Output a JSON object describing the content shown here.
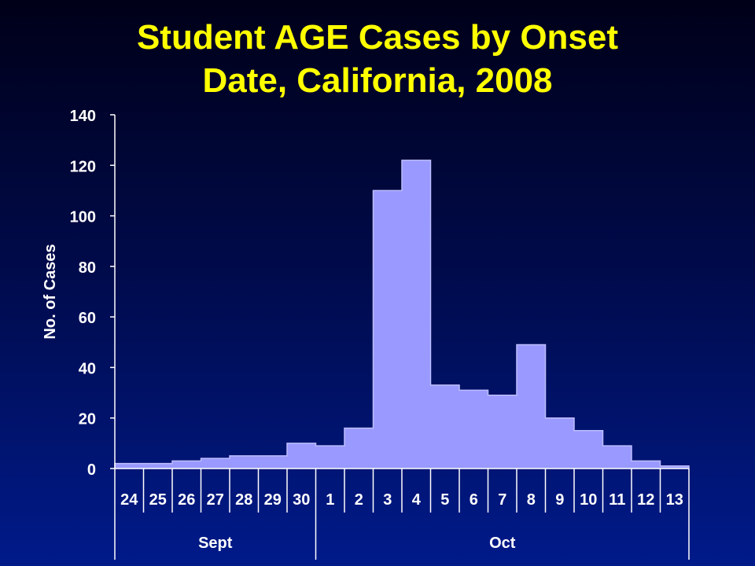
{
  "slide": {
    "title_line1": "Student AGE Cases by Onset",
    "title_line2": "Date, California, 2008"
  },
  "colors": {
    "title": "#ffff00",
    "bar_fill": "#9999ff",
    "axis": "#ffffff",
    "text": "#ffffff"
  },
  "chart_data": {
    "type": "bar",
    "title": "Student AGE Cases by Onset Date, California, 2008",
    "xlabel": "",
    "ylabel": "No. of Cases",
    "ylim": [
      0,
      140
    ],
    "yticks": [
      0,
      20,
      40,
      60,
      80,
      100,
      120,
      140
    ],
    "grid": false,
    "categories": [
      "24",
      "25",
      "26",
      "27",
      "28",
      "29",
      "30",
      "1",
      "2",
      "3",
      "4",
      "5",
      "6",
      "7",
      "8",
      "9",
      "10",
      "11",
      "12",
      "13"
    ],
    "values": [
      2,
      2,
      3,
      4,
      5,
      5,
      10,
      9,
      16,
      110,
      122,
      33,
      31,
      29,
      49,
      20,
      15,
      9,
      3,
      1
    ],
    "groups": [
      {
        "label": "Sept",
        "count": 7
      },
      {
        "label": "Oct",
        "count": 13
      }
    ]
  }
}
